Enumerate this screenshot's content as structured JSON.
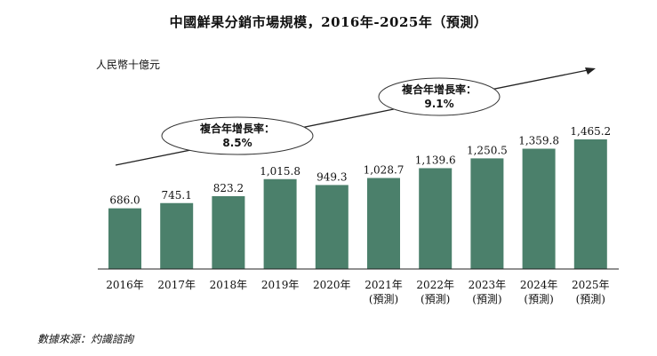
{
  "chart_data": {
    "type": "bar",
    "title": "中國鮮果分銷市場規模，2016年-2025年（預測）",
    "ylabel": "人民幣十億元",
    "categories": [
      "2016年",
      "2017年",
      "2018年",
      "2019年",
      "2020年",
      "2021年",
      "2022年",
      "2023年",
      "2024年",
      "2025年"
    ],
    "category_sublabels": [
      "",
      "",
      "",
      "",
      "",
      "(預測)",
      "(預測)",
      "(預測)",
      "(預測)",
      "(預測)"
    ],
    "values": [
      686.0,
      745.1,
      823.2,
      1015.8,
      949.3,
      1028.7,
      1139.6,
      1250.5,
      1359.8,
      1465.2
    ],
    "value_labels": [
      "686.0",
      "745.1",
      "823.2",
      "1,015.8",
      "949.3",
      "1,028.7",
      "1,139.6",
      "1,250.5",
      "1,359.8",
      "1,465.2"
    ],
    "ylim": [
      0,
      1465.2
    ],
    "bar_color": "#4b806b",
    "grid": false,
    "annotations": [
      {
        "label": "複合年增長率：",
        "value": "8.5%"
      },
      {
        "label": "複合年增長率：",
        "value": "9.1%"
      }
    ]
  },
  "source": "數據來源：灼識諮詢"
}
